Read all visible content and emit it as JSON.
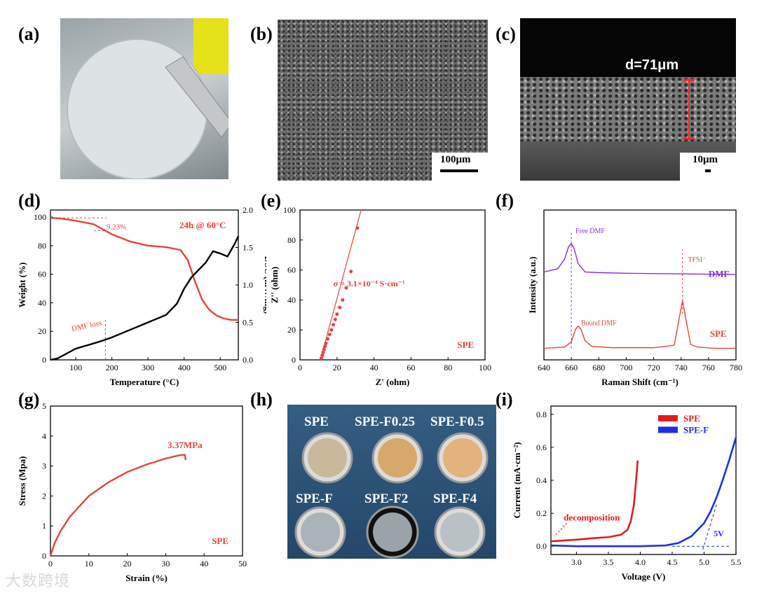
{
  "labels": {
    "a": "(a)",
    "b": "(b)",
    "c": "(c)",
    "d": "(d)",
    "e": "(e)",
    "f": "(f)",
    "g": "(g)",
    "h": "(h)",
    "i": "(i)"
  },
  "panel_b": {
    "scale_bar": "100μm"
  },
  "panel_c": {
    "thickness": "d=71μm",
    "scale_bar": "10μm"
  },
  "panel_h": {
    "samples": [
      "SPE",
      "SPE-F0.25",
      "SPE-F0.5",
      "SPE-F",
      "SPE-F2",
      "SPE-F4"
    ]
  },
  "watermark": "大数跨境",
  "chart_data": [
    {
      "id": "d",
      "type": "line",
      "xlabel": "Temperature (°C)",
      "ylabel": "Weight (%)",
      "y2label": "DSC (mW/mg)",
      "xlim": [
        30,
        550
      ],
      "ylim": [
        0,
        105
      ],
      "y2lim": [
        0,
        2.0
      ],
      "x_ticks": [
        100,
        200,
        300,
        400,
        500
      ],
      "y_ticks": [
        0,
        20,
        40,
        60,
        80,
        100
      ],
      "y2_ticks": [
        "0.0",
        "0.5",
        "1.0",
        "1.5",
        "2.0"
      ],
      "annotations": {
        "condition": "24h @ 60°C",
        "loss": "9.23%",
        "dmf": "DMF loss"
      },
      "series": [
        {
          "name": "Weight",
          "axis": "left",
          "color": "#e8423a",
          "x": [
            30,
            60,
            100,
            150,
            200,
            250,
            300,
            350,
            390,
            410,
            430,
            450,
            470,
            490,
            510,
            530,
            550
          ],
          "y": [
            99.5,
            99,
            97.5,
            95,
            88,
            83,
            80,
            79,
            77,
            70,
            55,
            42,
            35,
            31,
            29,
            28,
            28
          ]
        },
        {
          "name": "DSC",
          "axis": "right",
          "color": "#000000",
          "x": [
            30,
            50,
            100,
            150,
            170,
            200,
            250,
            300,
            350,
            380,
            400,
            420,
            440,
            460,
            480,
            500,
            520,
            540,
            550
          ],
          "y": [
            0.0,
            0.02,
            0.15,
            0.22,
            0.25,
            0.3,
            0.4,
            0.5,
            0.6,
            0.75,
            0.95,
            1.1,
            1.2,
            1.3,
            1.45,
            1.42,
            1.38,
            1.55,
            1.65
          ]
        }
      ]
    },
    {
      "id": "e",
      "type": "scatter",
      "xlabel": "Z' (ohm)",
      "ylabel": "Z'' (ohm)",
      "xlim": [
        0,
        100
      ],
      "ylim": [
        0,
        100
      ],
      "x_ticks": [
        0,
        20,
        40,
        60,
        80,
        100
      ],
      "y_ticks": [
        0,
        20,
        40,
        60,
        80,
        100
      ],
      "annotations": {
        "sigma": "σ = 3.1×10⁻⁴ S·cm⁻¹",
        "sample": "SPE"
      },
      "series": [
        {
          "name": "SPE",
          "color": "#e8423a",
          "x": [
            11.5,
            12,
            12.5,
            13,
            13.5,
            14,
            15,
            16,
            17,
            18,
            19,
            20,
            21.5,
            23,
            25,
            27.5,
            31
          ],
          "y": [
            1,
            3,
            5,
            7,
            9,
            11,
            14,
            17,
            20,
            23.5,
            27,
            30.5,
            35,
            40,
            48,
            59,
            88
          ]
        }
      ]
    },
    {
      "id": "f",
      "type": "line",
      "xlabel": "Raman Shift (cm⁻¹)",
      "ylabel": "Intensity (a.u.)",
      "xlim": [
        640,
        780
      ],
      "x_ticks": [
        640,
        660,
        680,
        700,
        720,
        740,
        760,
        780
      ],
      "annotations": {
        "free": "Free DMF",
        "bound": "Bound DMF",
        "tfsi": "TFSI⁻"
      },
      "series": [
        {
          "name": "DMF",
          "color": "#8a2be2",
          "x": [
            640,
            650,
            655,
            658,
            660,
            662,
            665,
            670,
            680,
            700,
            740,
            780
          ],
          "y": [
            0.55,
            0.6,
            0.75,
            0.95,
            1.0,
            0.92,
            0.68,
            0.55,
            0.54,
            0.53,
            0.52,
            0.51
          ]
        },
        {
          "name": "SPE",
          "color": "#e8423a",
          "x": [
            640,
            655,
            660,
            663,
            665,
            667,
            670,
            675,
            690,
            720,
            735,
            738,
            741,
            744,
            747,
            752,
            765,
            780
          ],
          "y": [
            0.0,
            0.02,
            0.1,
            0.3,
            0.35,
            0.3,
            0.12,
            0.03,
            0.01,
            0.01,
            0.05,
            0.4,
            0.75,
            0.4,
            0.06,
            0.02,
            0.0,
            0.0
          ]
        }
      ]
    },
    {
      "id": "g",
      "type": "line",
      "xlabel": "Strain (%)",
      "ylabel": "Stress (Mpa)",
      "xlim": [
        0,
        50
      ],
      "ylim": [
        0,
        5
      ],
      "x_ticks": [
        0,
        10,
        20,
        30,
        40,
        50
      ],
      "y_ticks": [
        0,
        1,
        2,
        3,
        4,
        5
      ],
      "annotations": {
        "max": "3.37MPa",
        "sample": "SPE"
      },
      "series": [
        {
          "name": "SPE",
          "color": "#e8423a",
          "x": [
            0,
            1,
            2.5,
            5,
            10,
            15,
            20,
            25,
            30,
            34,
            35,
            35.2
          ],
          "y": [
            0,
            0.4,
            0.8,
            1.3,
            2.0,
            2.45,
            2.8,
            3.05,
            3.25,
            3.37,
            3.37,
            3.2
          ]
        }
      ]
    },
    {
      "id": "i",
      "type": "line",
      "xlabel": "Voltage (V)",
      "ylabel": "Current (mA·cm⁻²)",
      "xlim": [
        2.6,
        5.5
      ],
      "ylim": [
        -0.05,
        0.85
      ],
      "x_ticks": [
        "3.0",
        "3.5",
        "4.0",
        "4.5",
        "5.0",
        "5.5"
      ],
      "y_ticks": [
        "0.0",
        "0.2",
        "0.4",
        "0.6",
        "0.8"
      ],
      "annotations": {
        "decomp": "decomposition",
        "window": "5V"
      },
      "series": [
        {
          "name": "SPE",
          "color": "#e21c1c",
          "x": [
            2.6,
            3.0,
            3.3,
            3.5,
            3.7,
            3.8,
            3.85,
            3.9,
            3.93,
            3.96
          ],
          "y": [
            0.03,
            0.04,
            0.05,
            0.055,
            0.07,
            0.1,
            0.15,
            0.25,
            0.38,
            0.52
          ]
        },
        {
          "name": "SPE-F",
          "color": "#1f2ee6",
          "x": [
            2.6,
            3.0,
            3.5,
            4.0,
            4.4,
            4.6,
            4.8,
            5.0,
            5.1,
            5.2,
            5.3,
            5.4,
            5.5
          ],
          "y": [
            0.005,
            0.0,
            0.0,
            0.0,
            0.005,
            0.02,
            0.06,
            0.14,
            0.21,
            0.3,
            0.41,
            0.53,
            0.66
          ]
        }
      ]
    }
  ]
}
